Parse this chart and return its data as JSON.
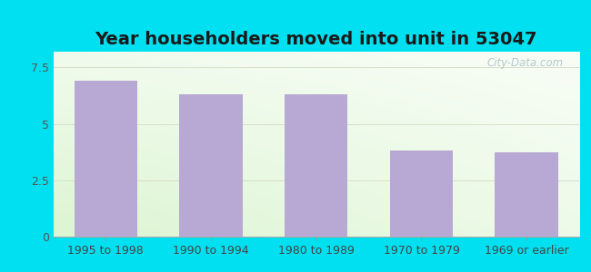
{
  "title": "Year householders moved into unit in 53047",
  "categories": [
    "1995 to 1998",
    "1990 to 1994",
    "1980 to 1989",
    "1970 to 1979",
    "1969 or earlier"
  ],
  "values": [
    6.9,
    6.3,
    6.3,
    3.8,
    3.75
  ],
  "bar_color": "#b8a9d4",
  "ylim": [
    0,
    8.2
  ],
  "yticks": [
    0,
    2.5,
    5,
    7.5
  ],
  "background_outer": "#00e0f0",
  "grid_color": "#d8dfc8",
  "title_fontsize": 14,
  "tick_fontsize": 9,
  "watermark": "City-Data.com",
  "bar_width": 0.6,
  "figsize": [
    6.5,
    3.0
  ],
  "dpi": 100
}
